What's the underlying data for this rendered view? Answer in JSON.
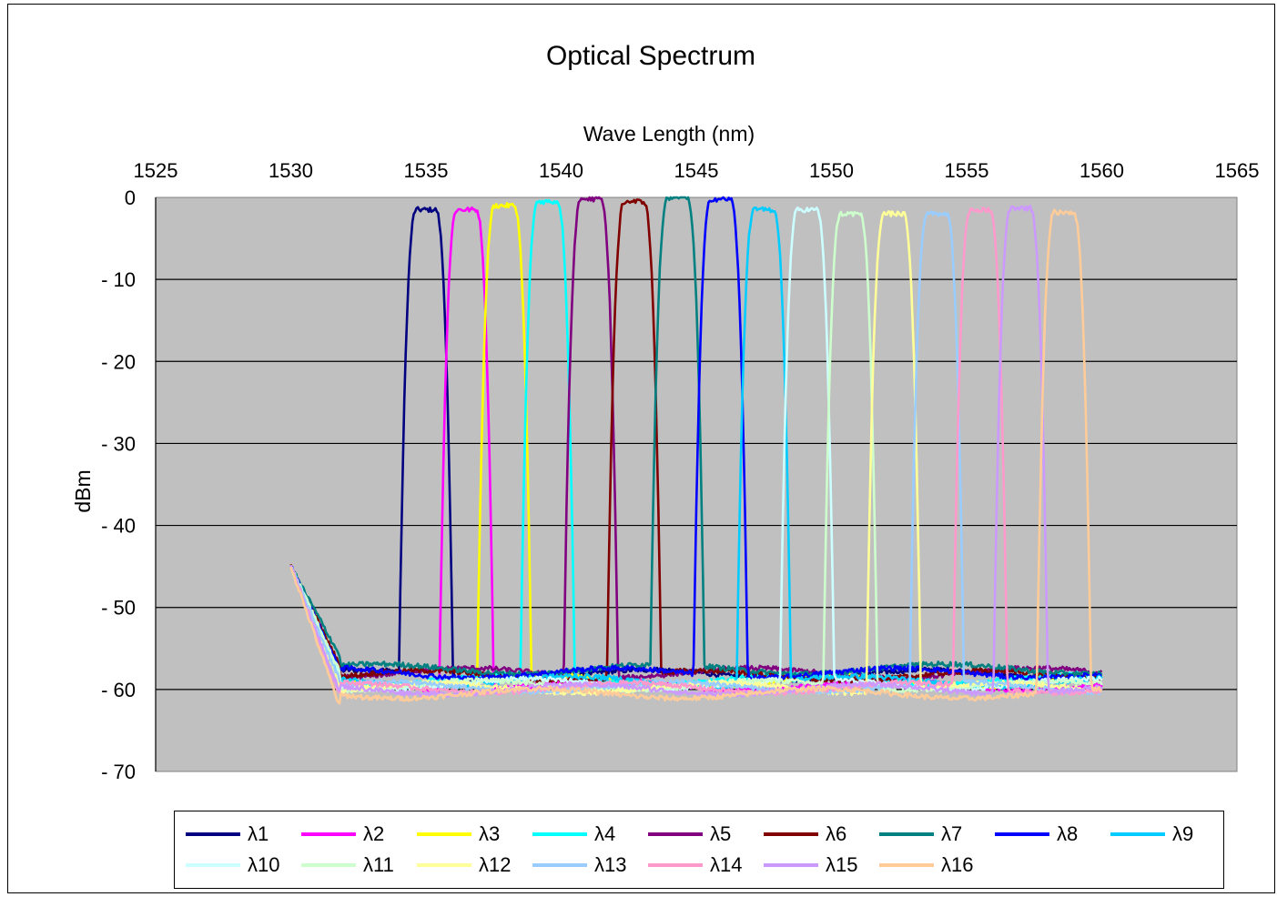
{
  "chart_data": {
    "type": "line",
    "title": "Optical Spectrum",
    "xlabel": "Wave Length (nm)",
    "ylabel": "dBm",
    "xlim": [
      1525,
      1565
    ],
    "ylim": [
      -70,
      0
    ],
    "x_ticks": [
      "1525",
      "1530",
      "1535",
      "1540",
      "1545",
      "1550",
      "1555",
      "1560",
      "1565"
    ],
    "y_ticks": [
      "0",
      "- 10",
      "- 20",
      "- 30",
      "- 40",
      "- 50",
      "- 60",
      "- 70"
    ],
    "grid": "horizontal",
    "plot_background": "#c0c0c0",
    "x_axis_position": "top",
    "legend_position": "bottom",
    "series": [
      {
        "name": "λ1",
        "color": "#000080",
        "center": 1535.0,
        "peak": -1.5,
        "floor": -58.2
      },
      {
        "name": "λ2",
        "color": "#ff00ff",
        "center": 1536.5,
        "peak": -1.5,
        "floor": -59.5
      },
      {
        "name": "λ3",
        "color": "#ffff00",
        "center": 1537.9,
        "peak": -1.0,
        "floor": -59.0
      },
      {
        "name": "λ4",
        "color": "#00ffff",
        "center": 1539.5,
        "peak": -0.5,
        "floor": -58.8
      },
      {
        "name": "λ5",
        "color": "#800080",
        "center": 1541.1,
        "peak": -0.2,
        "floor": -58.0
      },
      {
        "name": "λ6",
        "color": "#800000",
        "center": 1542.7,
        "peak": -0.5,
        "floor": -58.3
      },
      {
        "name": "λ7",
        "color": "#008080",
        "center": 1544.3,
        "peak": 0.0,
        "floor": -57.5
      },
      {
        "name": "λ8",
        "color": "#0000ff",
        "center": 1545.9,
        "peak": -0.2,
        "floor": -58.0
      },
      {
        "name": "λ9",
        "color": "#00ccff",
        "center": 1547.5,
        "peak": -1.5,
        "floor": -59.0
      },
      {
        "name": "λ10",
        "color": "#ccffff",
        "center": 1549.1,
        "peak": -1.5,
        "floor": -59.3
      },
      {
        "name": "λ11",
        "color": "#ccffcc",
        "center": 1550.7,
        "peak": -2.0,
        "floor": -59.5
      },
      {
        "name": "λ12",
        "color": "#ffff99",
        "center": 1552.3,
        "peak": -2.0,
        "floor": -59.8
      },
      {
        "name": "λ13",
        "color": "#99ccff",
        "center": 1553.9,
        "peak": -2.0,
        "floor": -59.7
      },
      {
        "name": "λ14",
        "color": "#ff99cc",
        "center": 1555.5,
        "peak": -1.5,
        "floor": -59.8
      },
      {
        "name": "λ15",
        "color": "#cc99ff",
        "center": 1557.0,
        "peak": -1.3,
        "floor": -60.0
      },
      {
        "name": "λ16",
        "color": "#ffcc99",
        "center": 1558.6,
        "peak": -1.8,
        "floor": -60.5
      }
    ]
  }
}
